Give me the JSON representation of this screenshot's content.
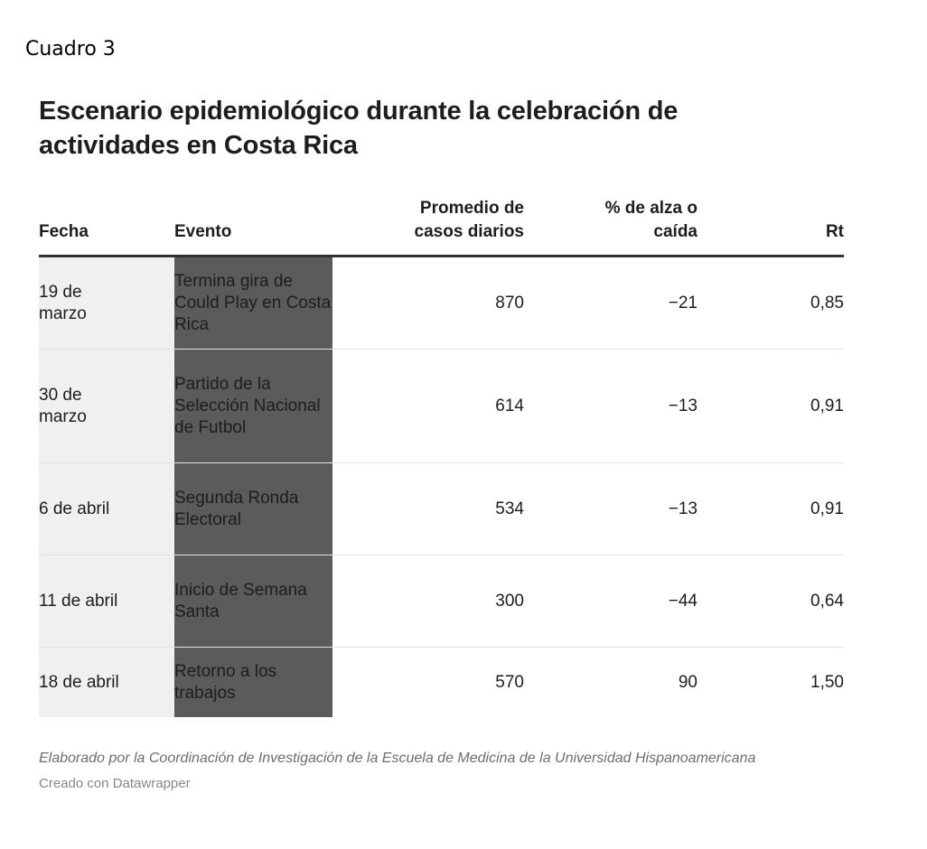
{
  "label": "Cuadro 3",
  "title": "Escenario epidemiológico durante la celebración de actividades en Costa Rica",
  "headers": {
    "fecha": "Fecha",
    "evento": "Evento",
    "promedio_line1": "Promedio de",
    "promedio_line2": "casos diarios",
    "alza_line1": "% de alza o",
    "alza_line2": "caída",
    "rt": "Rt"
  },
  "rows": [
    {
      "fecha_line1": "19 de",
      "fecha_line2": "marzo",
      "evento": "Termina gira de Could Play en Costa Rica",
      "promedio": "870",
      "alza": "−21",
      "rt": "0,85"
    },
    {
      "fecha_line1": "30 de",
      "fecha_line2": "marzo",
      "evento": "Partido de la Selección Nacional de Futbol",
      "promedio": "614",
      "alza": "−13",
      "rt": "0,91"
    },
    {
      "fecha_line1": "6 de abril",
      "fecha_line2": "",
      "evento": "Segunda Ronda Electoral",
      "promedio": "534",
      "alza": "−13",
      "rt": "0,91"
    },
    {
      "fecha_line1": "11 de abril",
      "fecha_line2": "",
      "evento": "Inicio de Semana Santa",
      "promedio": "300",
      "alza": "−44",
      "rt": "0,64"
    },
    {
      "fecha_line1": "18 de abril",
      "fecha_line2": "",
      "evento": "Retorno a los trabajos",
      "promedio": "570",
      "alza": "90",
      "rt": "1,50"
    }
  ],
  "footer": {
    "note": "Elaborado por la Coordinación de Investigación de la Escuela de Medicina de la Universidad Hispanoamericana",
    "credit": "Creado con Datawrapper"
  }
}
